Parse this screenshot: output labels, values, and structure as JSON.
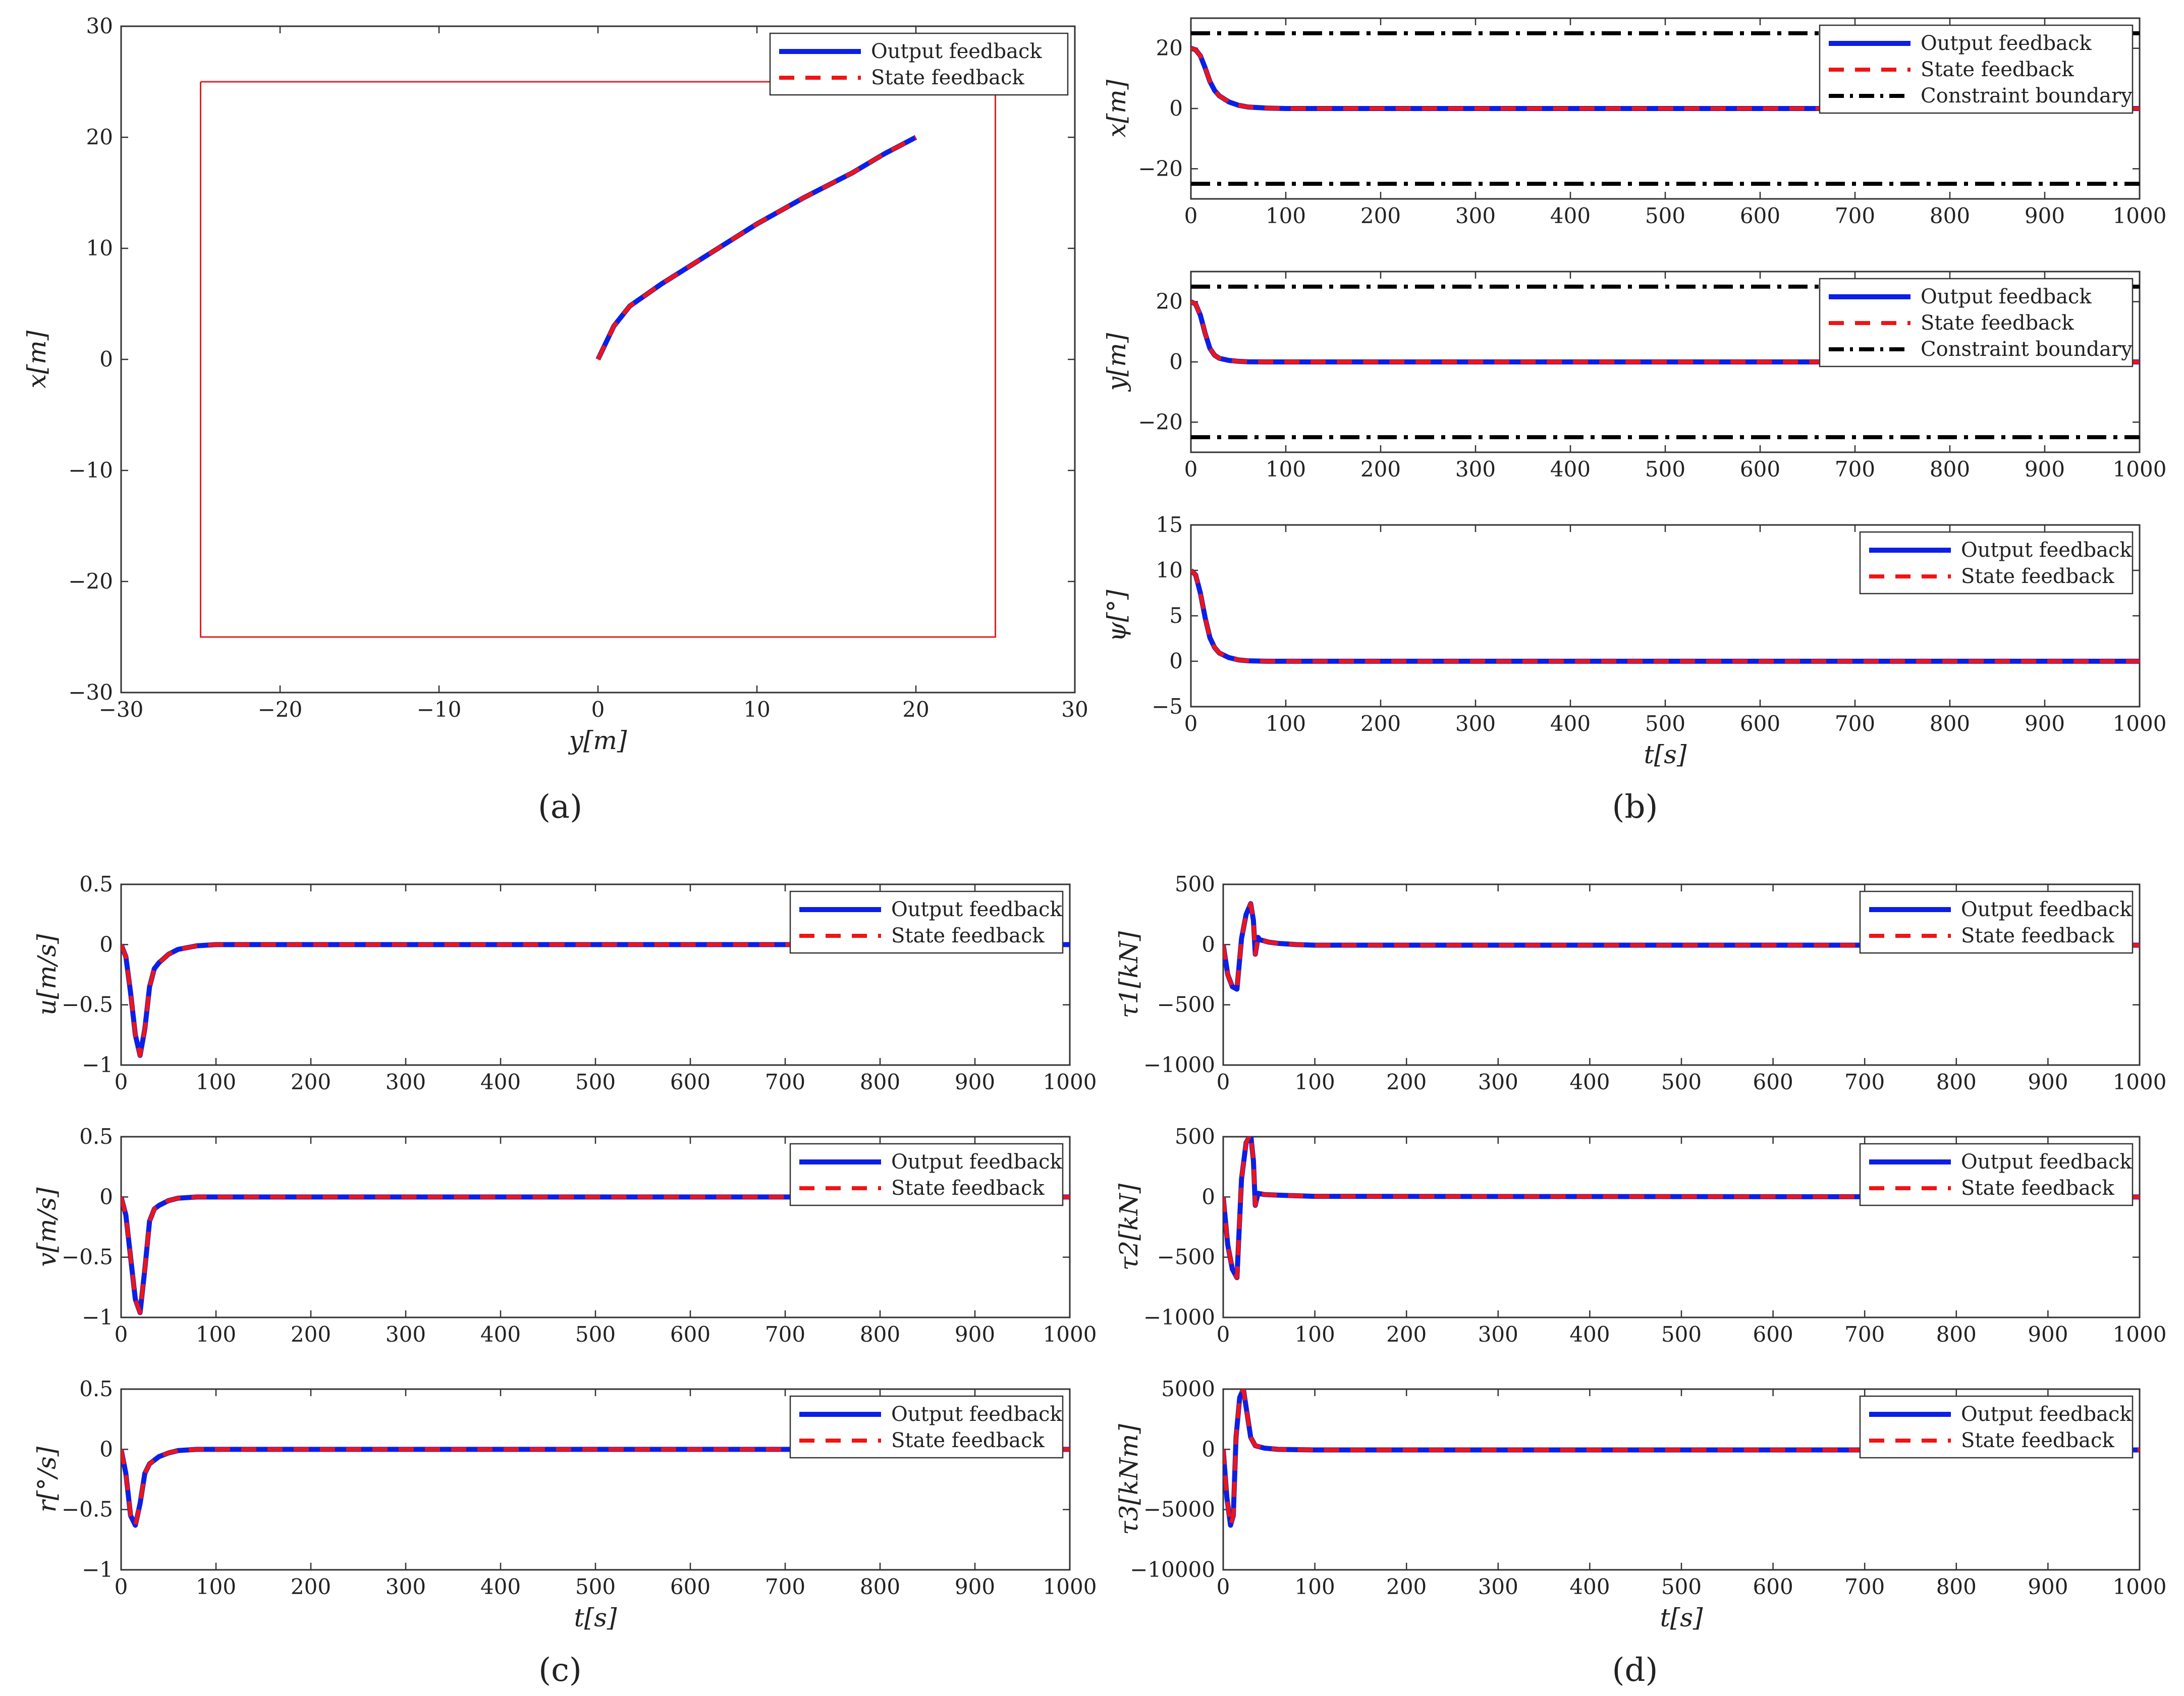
{
  "colors": {
    "output": "#0b1fe6",
    "state": "#f01414",
    "constraint": "#000000",
    "boundary_box": "#e02020",
    "axis": "#333333"
  },
  "legend": {
    "output": "Output feedback",
    "state": "State feedback",
    "constraint": "Constraint boundary"
  },
  "panel_labels": [
    "(a)",
    "(b)",
    "(c)",
    "(d)"
  ],
  "chart_data": [
    {
      "id": "a",
      "type": "line",
      "title": "",
      "xlabel": "y[m]",
      "ylabel": "x[m]",
      "xlim": [
        -30,
        30
      ],
      "ylim": [
        -30,
        30
      ],
      "xticks": [
        -30,
        -20,
        -10,
        0,
        10,
        20,
        30
      ],
      "yticks": [
        -30,
        -20,
        -10,
        0,
        10,
        20,
        30
      ],
      "legend": [
        "Output feedback",
        "State feedback"
      ],
      "legend_position": "top-right",
      "constraint_box": {
        "x": [
          -25,
          25,
          25,
          -25,
          -25
        ],
        "y": [
          25,
          25,
          -25,
          -25,
          25
        ]
      },
      "series": [
        {
          "name": "Output feedback",
          "x": [
            0,
            0.5,
            1,
            2,
            4,
            7,
            10,
            13,
            16,
            18,
            20
          ],
          "y": [
            0,
            1.5,
            3,
            4.8,
            6.8,
            9.5,
            12.2,
            14.6,
            16.8,
            18.5,
            20
          ]
        },
        {
          "name": "State feedback",
          "x": [
            0,
            0.5,
            1,
            2,
            4,
            7,
            10,
            13,
            16,
            18,
            20
          ],
          "y": [
            0,
            1.5,
            3,
            4.8,
            6.8,
            9.5,
            12.2,
            14.6,
            16.8,
            18.5,
            20
          ]
        }
      ]
    },
    {
      "id": "b1",
      "type": "line",
      "xlabel": "",
      "ylabel": "x[m]",
      "xlim": [
        0,
        1000
      ],
      "ylim": [
        -30,
        30
      ],
      "xticks": [
        0,
        100,
        200,
        300,
        400,
        500,
        600,
        700,
        800,
        900,
        1000
      ],
      "yticks": [
        -20,
        0,
        20
      ],
      "legend": [
        "Output feedback",
        "State feedback",
        "Constraint boundary"
      ],
      "legend_position": "top-right",
      "constraint_lines": [
        25,
        -25
      ],
      "series": [
        {
          "name": "Output feedback",
          "x": [
            0,
            5,
            10,
            15,
            20,
            25,
            30,
            40,
            50,
            60,
            80,
            100,
            1000
          ],
          "y": [
            20,
            19.5,
            17.5,
            13.5,
            9,
            6,
            4.2,
            2.2,
            1.1,
            0.5,
            0.15,
            0,
            0
          ]
        },
        {
          "name": "State feedback",
          "x": [
            0,
            5,
            10,
            15,
            20,
            25,
            30,
            40,
            50,
            60,
            80,
            100,
            1000
          ],
          "y": [
            20,
            19.5,
            17.5,
            13.5,
            9,
            6,
            4.2,
            2.2,
            1.1,
            0.5,
            0.15,
            0,
            0
          ]
        }
      ]
    },
    {
      "id": "b2",
      "type": "line",
      "xlabel": "",
      "ylabel": "y[m]",
      "xlim": [
        0,
        1000
      ],
      "ylim": [
        -30,
        30
      ],
      "xticks": [
        0,
        100,
        200,
        300,
        400,
        500,
        600,
        700,
        800,
        900,
        1000
      ],
      "yticks": [
        -20,
        0,
        20
      ],
      "legend": [
        "Output feedback",
        "State feedback",
        "Constraint boundary"
      ],
      "legend_position": "top-right",
      "constraint_lines": [
        25,
        -25
      ],
      "series": [
        {
          "name": "Output feedback",
          "x": [
            0,
            5,
            10,
            15,
            20,
            25,
            30,
            40,
            50,
            60,
            80,
            1000
          ],
          "y": [
            20,
            19.2,
            15.5,
            9.5,
            4.5,
            2.2,
            1.2,
            0.5,
            0.2,
            0.05,
            0,
            0
          ]
        },
        {
          "name": "State feedback",
          "x": [
            0,
            5,
            10,
            15,
            20,
            25,
            30,
            40,
            50,
            60,
            80,
            1000
          ],
          "y": [
            20,
            19.2,
            15.5,
            9.5,
            4.5,
            2.2,
            1.2,
            0.5,
            0.2,
            0.05,
            0,
            0
          ]
        }
      ]
    },
    {
      "id": "b3",
      "type": "line",
      "xlabel": "t[s]",
      "ylabel": "ψ[°]",
      "xlim": [
        0,
        1000
      ],
      "ylim": [
        -5,
        15
      ],
      "xticks": [
        0,
        100,
        200,
        300,
        400,
        500,
        600,
        700,
        800,
        900,
        1000
      ],
      "yticks": [
        -5,
        0,
        5,
        10,
        15
      ],
      "legend": [
        "Output feedback",
        "State feedback"
      ],
      "legend_position": "top-right",
      "series": [
        {
          "name": "Output feedback",
          "x": [
            0,
            5,
            10,
            15,
            20,
            25,
            30,
            40,
            50,
            60,
            80,
            1000
          ],
          "y": [
            10,
            9.5,
            7.5,
            4.8,
            2.6,
            1.5,
            0.9,
            0.4,
            0.15,
            0.05,
            0,
            0
          ]
        },
        {
          "name": "State feedback",
          "x": [
            0,
            5,
            10,
            15,
            20,
            25,
            30,
            40,
            50,
            60,
            80,
            1000
          ],
          "y": [
            10,
            9.5,
            7.5,
            4.8,
            2.6,
            1.5,
            0.9,
            0.4,
            0.15,
            0.05,
            0,
            0
          ]
        }
      ]
    },
    {
      "id": "c1",
      "type": "line",
      "xlabel": "",
      "ylabel": "u[m/s]",
      "xlim": [
        0,
        1000
      ],
      "ylim": [
        -1,
        0.5
      ],
      "xticks": [
        0,
        100,
        200,
        300,
        400,
        500,
        600,
        700,
        800,
        900,
        1000
      ],
      "yticks": [
        -1,
        -0.5,
        0,
        0.5
      ],
      "legend": [
        "Output feedback",
        "State feedback"
      ],
      "legend_position": "top-right",
      "series": [
        {
          "name": "Output feedback",
          "x": [
            0,
            5,
            10,
            15,
            20,
            25,
            30,
            35,
            40,
            50,
            60,
            80,
            100,
            1000
          ],
          "y": [
            0,
            -0.1,
            -0.4,
            -0.75,
            -0.92,
            -0.7,
            -0.35,
            -0.2,
            -0.15,
            -0.08,
            -0.04,
            -0.01,
            0,
            0
          ]
        },
        {
          "name": "State feedback",
          "x": [
            0,
            5,
            10,
            15,
            20,
            25,
            30,
            35,
            40,
            50,
            60,
            80,
            100,
            1000
          ],
          "y": [
            0,
            -0.1,
            -0.4,
            -0.75,
            -0.92,
            -0.7,
            -0.35,
            -0.2,
            -0.15,
            -0.08,
            -0.04,
            -0.01,
            0,
            0
          ]
        }
      ]
    },
    {
      "id": "c2",
      "type": "line",
      "xlabel": "",
      "ylabel": "v[m/s]",
      "xlim": [
        0,
        1000
      ],
      "ylim": [
        -1,
        0.5
      ],
      "xticks": [
        0,
        100,
        200,
        300,
        400,
        500,
        600,
        700,
        800,
        900,
        1000
      ],
      "yticks": [
        -1,
        -0.5,
        0,
        0.5
      ],
      "legend": [
        "Output feedback",
        "State feedback"
      ],
      "legend_position": "top-right",
      "series": [
        {
          "name": "Output feedback",
          "x": [
            0,
            5,
            10,
            15,
            20,
            25,
            30,
            35,
            40,
            50,
            60,
            80,
            1000
          ],
          "y": [
            0,
            -0.15,
            -0.5,
            -0.85,
            -0.96,
            -0.6,
            -0.2,
            -0.1,
            -0.07,
            -0.03,
            -0.01,
            0,
            0
          ]
        },
        {
          "name": "State feedback",
          "x": [
            0,
            5,
            10,
            15,
            20,
            25,
            30,
            35,
            40,
            50,
            60,
            80,
            1000
          ],
          "y": [
            0,
            -0.15,
            -0.5,
            -0.85,
            -0.96,
            -0.6,
            -0.2,
            -0.1,
            -0.07,
            -0.03,
            -0.01,
            0,
            0
          ]
        }
      ]
    },
    {
      "id": "c3",
      "type": "line",
      "xlabel": "t[s]",
      "ylabel": "r[°/s]",
      "xlim": [
        0,
        1000
      ],
      "ylim": [
        -1,
        0.5
      ],
      "xticks": [
        0,
        100,
        200,
        300,
        400,
        500,
        600,
        700,
        800,
        900,
        1000
      ],
      "yticks": [
        -1,
        -0.5,
        0,
        0.5
      ],
      "legend": [
        "Output feedback",
        "State feedback"
      ],
      "legend_position": "top-right",
      "series": [
        {
          "name": "Output feedback",
          "x": [
            0,
            5,
            10,
            15,
            20,
            25,
            30,
            40,
            50,
            60,
            80,
            1000
          ],
          "y": [
            0,
            -0.2,
            -0.55,
            -0.63,
            -0.45,
            -0.2,
            -0.12,
            -0.06,
            -0.03,
            -0.01,
            0,
            0
          ]
        },
        {
          "name": "State feedback",
          "x": [
            0,
            5,
            10,
            15,
            20,
            25,
            30,
            40,
            50,
            60,
            80,
            1000
          ],
          "y": [
            0,
            -0.2,
            -0.55,
            -0.63,
            -0.45,
            -0.2,
            -0.12,
            -0.06,
            -0.03,
            -0.01,
            0,
            0
          ]
        }
      ]
    },
    {
      "id": "d1",
      "type": "line",
      "xlabel": "",
      "ylabel": "τ1[kN]",
      "xlim": [
        0,
        1000
      ],
      "ylim": [
        -1000,
        500
      ],
      "xticks": [
        0,
        100,
        200,
        300,
        400,
        500,
        600,
        700,
        800,
        900,
        1000
      ],
      "yticks": [
        -1000,
        -500,
        0,
        500
      ],
      "legend": [
        "Output feedback",
        "State feedback"
      ],
      "legend_position": "top-right",
      "series": [
        {
          "name": "Output feedback",
          "x": [
            0,
            5,
            10,
            15,
            20,
            25,
            30,
            33,
            35,
            38,
            40,
            50,
            60,
            80,
            100,
            1000
          ],
          "y": [
            0,
            -250,
            -350,
            -370,
            50,
            250,
            340,
            200,
            -80,
            60,
            40,
            20,
            10,
            0,
            -5,
            -5
          ]
        },
        {
          "name": "State feedback",
          "x": [
            0,
            5,
            10,
            15,
            20,
            25,
            30,
            33,
            35,
            38,
            40,
            50,
            60,
            80,
            100,
            1000
          ],
          "y": [
            0,
            -250,
            -350,
            -370,
            50,
            250,
            340,
            200,
            -80,
            60,
            40,
            20,
            10,
            0,
            -5,
            -5
          ]
        }
      ]
    },
    {
      "id": "d2",
      "type": "line",
      "xlabel": "",
      "ylabel": "τ2[kN]",
      "xlim": [
        0,
        1000
      ],
      "ylim": [
        -1000,
        500
      ],
      "xticks": [
        0,
        100,
        200,
        300,
        400,
        500,
        600,
        700,
        800,
        900,
        1000
      ],
      "yticks": [
        -1000,
        -500,
        0,
        500
      ],
      "legend": [
        "Output feedback",
        "State feedback"
      ],
      "legend_position": "top-right",
      "series": [
        {
          "name": "Output feedback",
          "x": [
            0,
            5,
            10,
            15,
            20,
            25,
            30,
            33,
            35,
            38,
            45,
            60,
            100,
            1000
          ],
          "y": [
            0,
            -400,
            -600,
            -670,
            150,
            450,
            520,
            300,
            -70,
            30,
            20,
            15,
            5,
            0
          ]
        },
        {
          "name": "State feedback",
          "x": [
            0,
            5,
            10,
            15,
            20,
            25,
            30,
            33,
            35,
            38,
            45,
            60,
            100,
            1000
          ],
          "y": [
            0,
            -400,
            -600,
            -670,
            150,
            450,
            520,
            300,
            -70,
            30,
            20,
            15,
            5,
            0
          ]
        }
      ]
    },
    {
      "id": "d3",
      "type": "line",
      "xlabel": "t[s]",
      "ylabel": "τ3[kNm]",
      "xlim": [
        0,
        1000
      ],
      "ylim": [
        -10000,
        5000
      ],
      "xticks": [
        0,
        100,
        200,
        300,
        400,
        500,
        600,
        700,
        800,
        900,
        1000
      ],
      "yticks": [
        -10000,
        -5000,
        0,
        5000
      ],
      "legend": [
        "Output feedback",
        "State feedback"
      ],
      "legend_position": "top-right",
      "series": [
        {
          "name": "Output feedback",
          "x": [
            0,
            4,
            8,
            11,
            14,
            18,
            22,
            25,
            30,
            35,
            45,
            60,
            100,
            1000
          ],
          "y": [
            0,
            -4000,
            -6300,
            -5500,
            1000,
            4300,
            5000,
            3500,
            1000,
            300,
            100,
            0,
            -50,
            -50
          ]
        },
        {
          "name": "State feedback",
          "x": [
            0,
            4,
            8,
            11,
            14,
            18,
            22,
            25,
            30,
            35,
            45,
            60,
            100,
            1000
          ],
          "y": [
            0,
            -4000,
            -6300,
            -5500,
            1000,
            4300,
            5000,
            3500,
            1000,
            300,
            100,
            0,
            -50,
            -50
          ]
        }
      ]
    }
  ]
}
